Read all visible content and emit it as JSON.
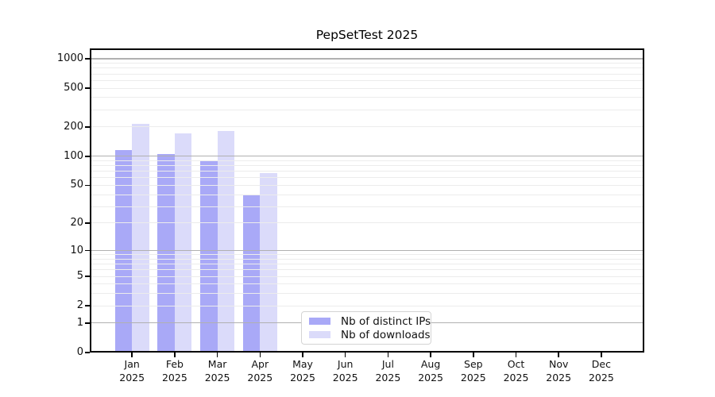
{
  "title": "PepSetTest 2025",
  "chart_data": {
    "type": "bar",
    "title": "PepSetTest 2025",
    "months": [
      "Jan",
      "Feb",
      "Mar",
      "Apr",
      "May",
      "Jun",
      "Jul",
      "Aug",
      "Sep",
      "Oct",
      "Nov",
      "Dec"
    ],
    "year": "2025",
    "categories": [
      "Jan 2025",
      "Feb 2025",
      "Mar 2025",
      "Apr 2025",
      "May 2025",
      "Jun 2025",
      "Jul 2025",
      "Aug 2025",
      "Sep 2025",
      "Oct 2025",
      "Nov 2025",
      "Dec 2025"
    ],
    "series": [
      {
        "name": "Nb of distinct IPs",
        "color": "#a9a9f7",
        "values": [
          115,
          105,
          90,
          39,
          null,
          null,
          null,
          null,
          null,
          null,
          null,
          null
        ]
      },
      {
        "name": "Nb of downloads",
        "color": "#dbdbfa",
        "values": [
          215,
          173,
          182,
          67,
          null,
          null,
          null,
          null,
          null,
          null,
          null,
          null
        ]
      }
    ],
    "y_axis": {
      "scale": "symlog",
      "tick_values": [
        0,
        1,
        2,
        5,
        10,
        20,
        50,
        100,
        200,
        500,
        1000
      ],
      "major_grid_values": [
        1,
        10,
        100,
        1000
      ],
      "range_max": 1000
    },
    "x_axis": {
      "label": "",
      "tick_count": 12
    },
    "legend_position": "bottom-center",
    "grid": "on"
  },
  "colors": {
    "major_grid": "#b0b0b0",
    "minor_grid": "#ececec",
    "spine": "#000000",
    "legend_border": "#d4d4d4",
    "background": "#ffffff"
  }
}
